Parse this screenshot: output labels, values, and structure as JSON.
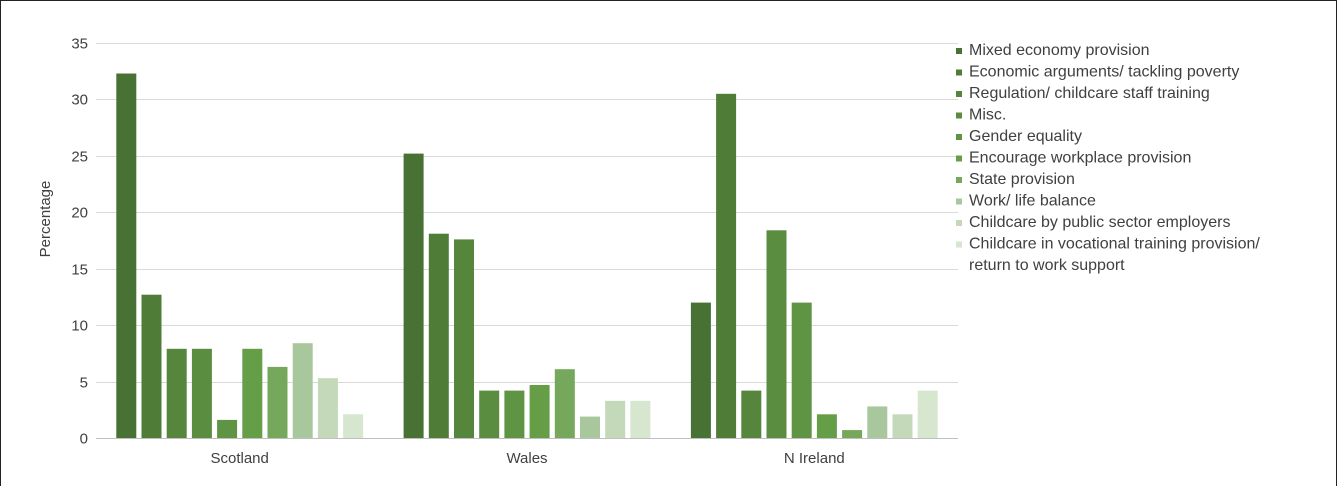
{
  "chart_data": {
    "type": "bar",
    "ylabel": "Percentage",
    "ylim": [
      0,
      35
    ],
    "yticks": [
      0,
      5,
      10,
      15,
      20,
      25,
      30,
      35
    ],
    "grid": true,
    "legend_position": "right",
    "categories": [
      "Scotland",
      "Wales",
      "N Ireland"
    ],
    "series": [
      {
        "name": "Mixed economy provision",
        "color": "#487134",
        "values": [
          32.3,
          25.2,
          12.0
        ]
      },
      {
        "name": "Economic arguments/ tackling poverty",
        "color": "#4f7d38",
        "values": [
          12.7,
          18.1,
          30.5
        ]
      },
      {
        "name": "Regulation/ childcare staff training",
        "color": "#55863c",
        "values": [
          7.9,
          17.6,
          4.2
        ]
      },
      {
        "name": "Misc.",
        "color": "#5a8d3f",
        "values": [
          7.9,
          4.2,
          18.4
        ]
      },
      {
        "name": "Gender equality",
        "color": "#5e9443",
        "values": [
          1.6,
          4.2,
          12.0
        ]
      },
      {
        "name": "Encourage workplace provision",
        "color": "#669e48",
        "values": [
          7.9,
          4.7,
          2.1
        ]
      },
      {
        "name": "State provision",
        "color": "#75a85a",
        "values": [
          6.3,
          6.1,
          0.7
        ]
      },
      {
        "name": "Work/ life balance",
        "color": "#a9c79c",
        "values": [
          8.4,
          1.9,
          2.8
        ]
      },
      {
        "name": "Childcare by public sector employers",
        "color": "#c3d9ba",
        "values": [
          5.3,
          3.3,
          2.1
        ]
      },
      {
        "name": "Childcare in vocational training provision/ return to work support",
        "lines": [
          "Childcare in vocational training provision/",
          "return to work support"
        ],
        "color": "#d6e6cf",
        "values": [
          2.1,
          3.3,
          4.2
        ]
      }
    ]
  }
}
